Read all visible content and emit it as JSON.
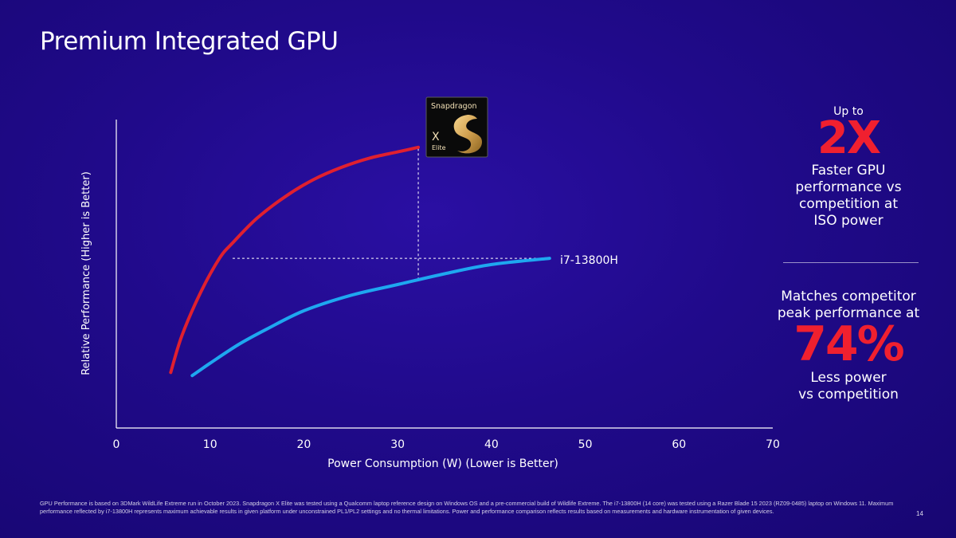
{
  "slide": {
    "title": "Premium Integrated GPU",
    "page_number": "14",
    "footnote": "GPU Performance is based on 3DMark WildLife Extreme run in October 2023. Snapdragon X Elite was tested using a Qualcomm laptop reference design on Windows OS and a pre-commercial build of Wildlife Extreme. The i7-13800H (14 core) was tested using a Razer Blade 15 2023 (RZ09-0485) laptop on Windows 11. Maximum performance reflected by  i7-13800H represents maximum achievable results in given platform under unconstrained PL1/PL2 settings and no thermal limitations. Power and performance comparison reflects results based on measurements and hardware instrumentation of given devices."
  },
  "badge": {
    "brand": "Snapdragon",
    "line1": "X",
    "line2": "Elite"
  },
  "callouts": {
    "top": {
      "pre": "Up to",
      "big": "2X",
      "post": [
        "Faster GPU",
        "performance vs",
        "competition at",
        "ISO power"
      ]
    },
    "bottom": {
      "pre": [
        "Matches competitor",
        "peak performance at"
      ],
      "big": "74%",
      "post": [
        "Less power",
        "vs competition"
      ]
    }
  },
  "colors": {
    "background": "#200a8a",
    "snapdragon_curve": "#e0202f",
    "competitor_curve": "#1ea7f0",
    "accent_text": "#f0202f"
  },
  "chart_data": {
    "type": "line",
    "title": "",
    "xlabel": "Power Consumption (W) (Lower is Better)",
    "ylabel": "Relative Performance  (Higher is Better)",
    "xlim": [
      0,
      70
    ],
    "ylim": [
      0,
      100
    ],
    "x_ticks": [
      0,
      10,
      20,
      30,
      40,
      50,
      60,
      70
    ],
    "y_ticks_shown": false,
    "grid": false,
    "series": [
      {
        "label": "",
        "color": "#e0202f",
        "x": [
          5.8,
          7,
          9,
          11,
          12.4,
          15,
          18,
          21,
          24,
          27,
          30,
          32.2
        ],
        "y": [
          18,
          30,
          44,
          55,
          60,
          68,
          75,
          80.5,
          84.5,
          87.5,
          89.5,
          91
        ]
      },
      {
        "label": "i7-13800H",
        "color": "#1ea7f0",
        "x": [
          8.1,
          10,
          13,
          16,
          20,
          25,
          30,
          35,
          40,
          46.2
        ],
        "y": [
          17,
          21,
          27,
          32,
          38,
          43,
          46.5,
          50,
          53,
          55
        ]
      }
    ],
    "annotations": [
      {
        "type": "hline-dashed",
        "from": [
          12.4,
          55
        ],
        "to": [
          46.2,
          55
        ]
      },
      {
        "type": "vline-dashed",
        "from": [
          32.2,
          48
        ],
        "to": [
          32.2,
          91
        ]
      }
    ]
  }
}
